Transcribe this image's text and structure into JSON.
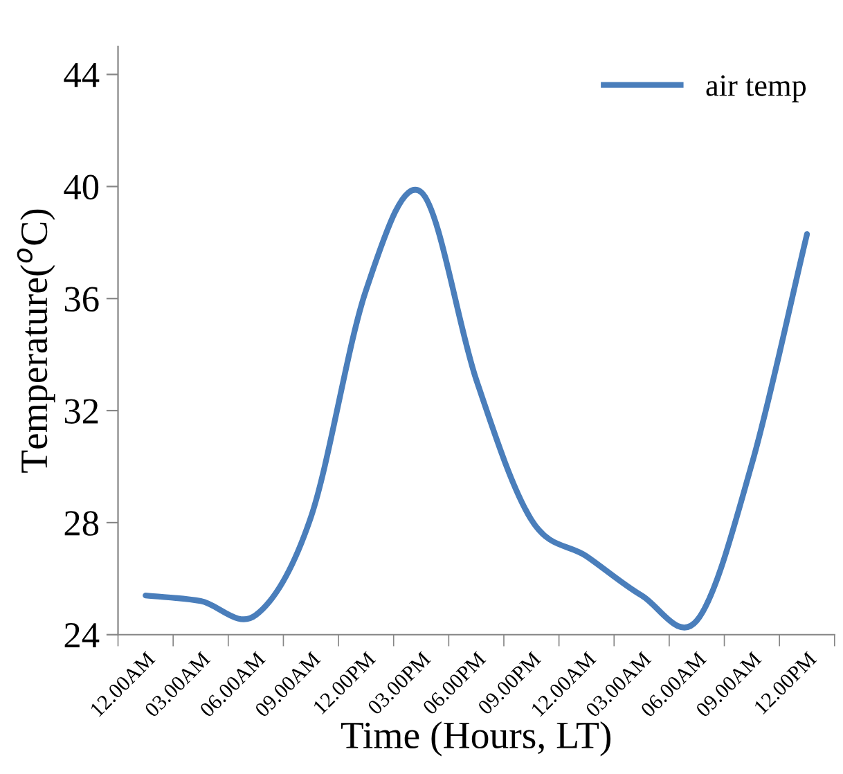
{
  "chart_data": {
    "type": "line",
    "xlabel": "Time (Hours, LT)",
    "ylabel": "Temperature($^{o}$C)",
    "categories": [
      "12.00AM",
      "03.00AM",
      "06.00AM",
      "09.00AM",
      "12.00PM",
      "03.00PM",
      "06.00PM",
      "09.00PM",
      "12.00AM",
      "03.00AM",
      "06.00AM",
      "09.00AM",
      "12.00PM"
    ],
    "series": [
      {
        "name": "air temp",
        "color": "#4a7ebb",
        "values": [
          25.4,
          25.2,
          24.7,
          28.2,
          36.3,
          39.8,
          33.1,
          28.1,
          26.8,
          25.4,
          24.5,
          30.1,
          38.3
        ]
      }
    ],
    "ylim": [
      24,
      45
    ],
    "yticks": [
      24,
      28,
      32,
      36,
      40,
      44
    ],
    "grid": false,
    "legend": "top right",
    "marker": "none",
    "line_style": "solid"
  }
}
